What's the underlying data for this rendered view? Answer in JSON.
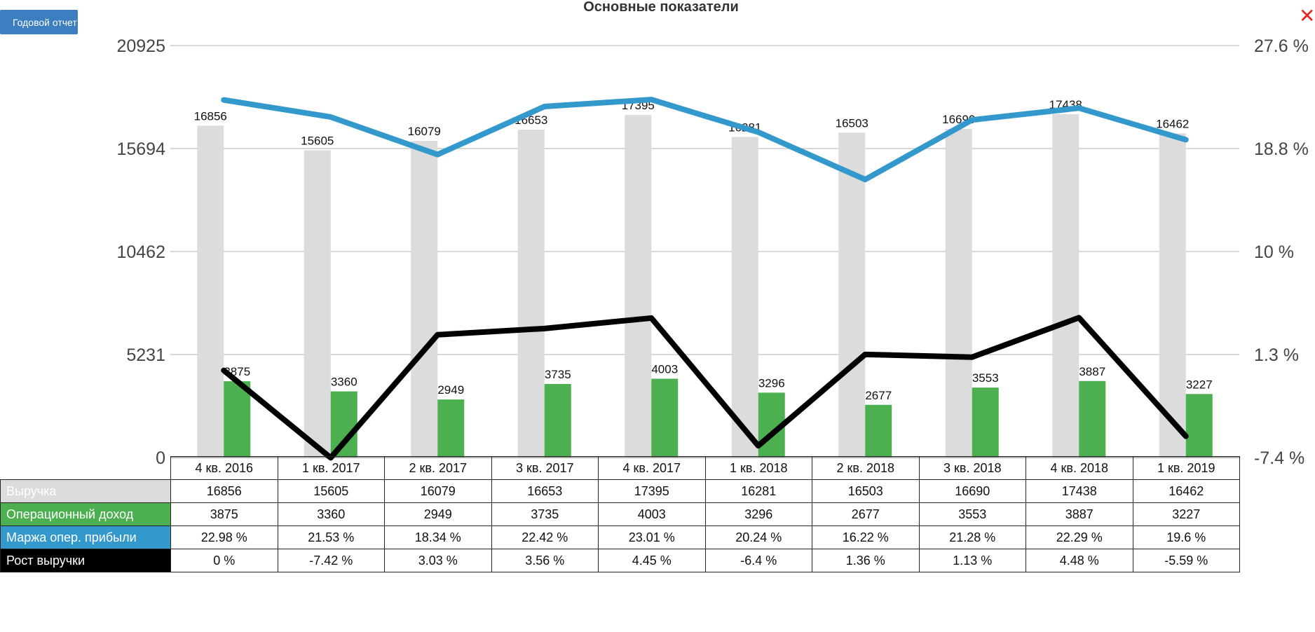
{
  "toolbar": {
    "report_button_label": "Годовой отчет",
    "close_label": "✕"
  },
  "colors": {
    "revenue": "#dcdcdc",
    "operating_income": "#4caf50",
    "margin": "#3399cc",
    "growth": "#000000",
    "grid": "#cccccc",
    "close": "#e8261e",
    "button": "#3c7ebf"
  },
  "chart_data": {
    "type": "bar",
    "title": "Основные показатели",
    "categories": [
      "4 кв. 2016",
      "1 кв. 2017",
      "2 кв. 2017",
      "3 кв. 2017",
      "4 кв. 2017",
      "1 кв. 2018",
      "2 кв. 2018",
      "3 кв. 2018",
      "4 кв. 2018",
      "1 кв. 2019"
    ],
    "left_axis": {
      "ticks": [
        "0",
        "5231",
        "10462",
        "15694",
        "20925"
      ],
      "ylim": [
        0,
        20925
      ]
    },
    "right_axis": {
      "ticks": [
        "-7.4 %",
        "1.3 %",
        "10 %",
        "18.8 %",
        "27.6 %"
      ],
      "ylim": [
        -7.4,
        27.6
      ]
    },
    "grid": true,
    "series": [
      {
        "name": "Выручка",
        "type": "bar",
        "axis": "left",
        "values": [
          16856,
          15605,
          16079,
          16653,
          17395,
          16281,
          16503,
          16690,
          17438,
          16462
        ]
      },
      {
        "name": "Операционный доход",
        "type": "bar",
        "axis": "left",
        "values": [
          3875,
          3360,
          2949,
          3735,
          4003,
          3296,
          2677,
          3553,
          3887,
          3227
        ]
      },
      {
        "name": "Маржа опер. прибыли",
        "type": "line",
        "axis": "right",
        "values": [
          22.98,
          21.53,
          18.34,
          22.42,
          23.01,
          20.24,
          16.22,
          21.28,
          22.29,
          19.6
        ]
      },
      {
        "name": "Рост выручки",
        "type": "line",
        "axis": "right",
        "values": [
          0,
          -7.42,
          3.03,
          3.56,
          4.45,
          -6.4,
          1.36,
          1.13,
          4.48,
          -5.59
        ]
      }
    ]
  },
  "table": {
    "rows": [
      {
        "label": "Выручка",
        "cells": [
          "16856",
          "15605",
          "16079",
          "16653",
          "17395",
          "16281",
          "16503",
          "16690",
          "17438",
          "16462"
        ]
      },
      {
        "label": "Операционный доход",
        "cells": [
          "3875",
          "3360",
          "2949",
          "3735",
          "4003",
          "3296",
          "2677",
          "3553",
          "3887",
          "3227"
        ]
      },
      {
        "label": "Маржа опер. прибыли",
        "cells": [
          "22.98 %",
          "21.53 %",
          "18.34 %",
          "22.42 %",
          "23.01 %",
          "20.24 %",
          "16.22 %",
          "21.28 %",
          "22.29 %",
          "19.6 %"
        ]
      },
      {
        "label": "Рост выручки",
        "cells": [
          "0 %",
          "-7.42 %",
          "3.03 %",
          "3.56 %",
          "4.45 %",
          "-6.4 %",
          "1.36 %",
          "1.13 %",
          "4.48 %",
          "-5.59 %"
        ]
      }
    ]
  }
}
